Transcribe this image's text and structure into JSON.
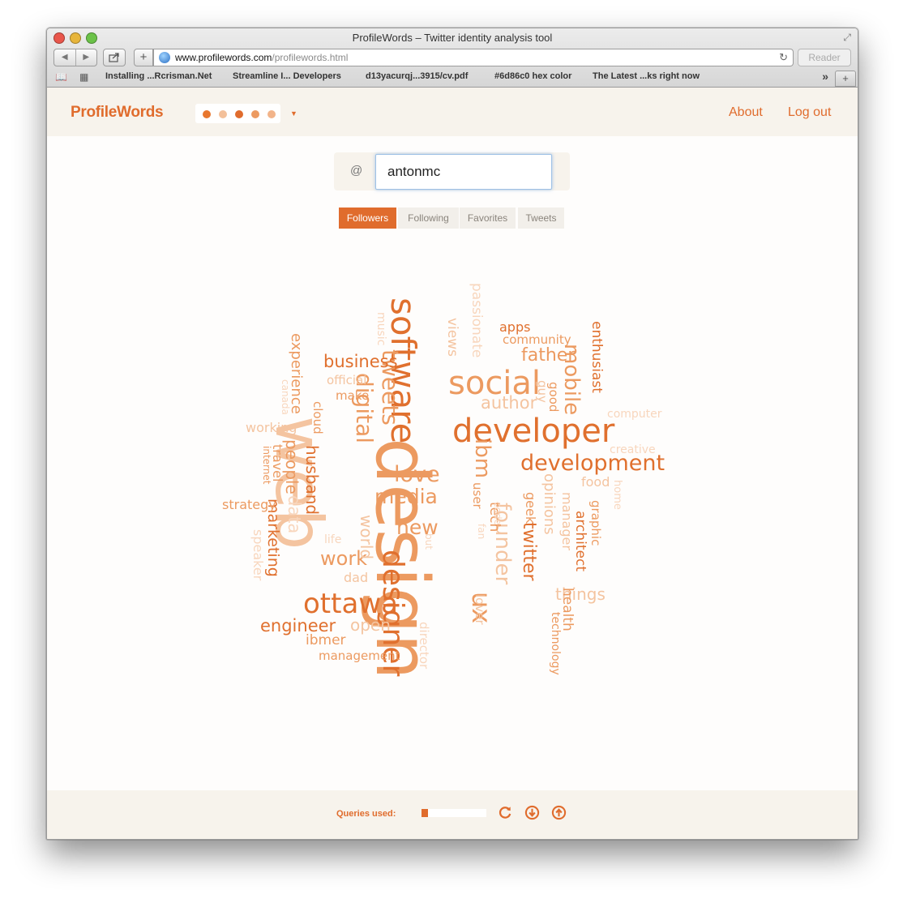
{
  "browser": {
    "window_title": "ProfileWords – Twitter identity analysis tool",
    "url_host": "www.profilewords.com",
    "url_path": "/profilewords.html",
    "reader_label": "Reader",
    "bookmarks": [
      "Installing ...Rcrisman.Net",
      "Streamline I... Developers",
      "d13yacurqj...3915/cv.pdf",
      "#6d86c0 hex color",
      "The Latest ...ks right now"
    ]
  },
  "header": {
    "brand": "ProfileWords",
    "palette_colors": [
      "#e8772e",
      "#f3c09a",
      "#e06c2d",
      "#ec9a60",
      "#f2b48a"
    ],
    "nav": {
      "about": "About",
      "logout": "Log out"
    }
  },
  "search": {
    "prefix": "@",
    "value": "antonmc"
  },
  "tabs": [
    {
      "label": "Followers",
      "active": true
    },
    {
      "label": "Following",
      "active": false
    },
    {
      "label": "Favorites",
      "active": false
    },
    {
      "label": "Tweets",
      "active": false
    }
  ],
  "cloud_palette": {
    "dark": "#e0702e",
    "medium": "#ec9a60",
    "light": "#f4c4a0",
    "lighter": "#f8d6bd"
  },
  "cloud_words": [
    "design",
    "web",
    "developer",
    "software",
    "designer",
    "social",
    "ottawa",
    "development",
    "tweets",
    "digital",
    "ux",
    "ibm",
    "love",
    "media",
    "mobile",
    "founder",
    "new",
    "work",
    "business",
    "father",
    "engineer",
    "author",
    "twitter",
    "experience",
    "husband",
    "people",
    "marketing",
    "open",
    "things",
    "world",
    "apps",
    "views",
    "community",
    "passionate",
    "enthusiast",
    "official",
    "make",
    "guy",
    "good",
    "computer",
    "creative",
    "food",
    "opinions",
    "geek",
    "manager",
    "architect",
    "graphic",
    "home",
    "tech",
    "code",
    "fan",
    "user",
    "lover",
    "health",
    "technology",
    "director",
    "management",
    "ibmer",
    "dad",
    "life",
    "but",
    "speaker",
    "strategy",
    "travel",
    "internet",
    "canada",
    "working",
    "cloud",
    "music",
    "data"
  ],
  "footer": {
    "queries_label": "Queries used:",
    "queries_used_fraction": 0.1,
    "icons": [
      "refresh-icon",
      "download-icon",
      "upload-icon"
    ]
  }
}
